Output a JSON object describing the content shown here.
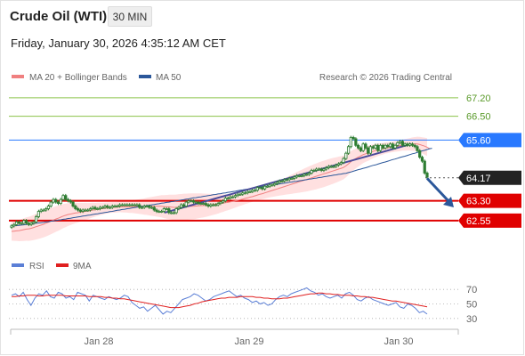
{
  "header": {
    "title": "Crude Oil (WTI)",
    "timeframe": "30 MIN",
    "datetime": "Friday, January 30, 2026 4:35:12 AM CET"
  },
  "legend": {
    "ma20": "MA 20 + Bollinger Bands",
    "ma50": "MA 50",
    "credit": "Research © 2026 Trading Central",
    "rsi": "RSI",
    "ma9": "9MA"
  },
  "colors": {
    "candle": "#2e7d32",
    "ma20": "#f08080",
    "band": "#ffe0e0",
    "ma50": "#2b579a",
    "resistance_green": "#8bc34a",
    "pivot_blue": "#2979ff",
    "support_red": "#e00000",
    "trend": "#4a4a9a",
    "arrow": "#2b579a",
    "rsi": "#5b7fd6",
    "rsi_ma": "#e02020"
  },
  "chart_data": {
    "type": "candlestick",
    "title": "Crude Oil (WTI)",
    "interval": "30 MIN",
    "xlabel": "",
    "ylabel": "",
    "x_ticks": [
      "Jan 28",
      "Jan 29",
      "Jan 30"
    ],
    "ylim": [
      61.4,
      67.6
    ],
    "levels": [
      {
        "label": "67.20",
        "value": 67.2,
        "kind": "resistance"
      },
      {
        "label": "66.50",
        "value": 66.5,
        "kind": "resistance"
      },
      {
        "label": "65.60",
        "value": 65.6,
        "kind": "pivot"
      },
      {
        "label": "64.17",
        "value": 64.17,
        "kind": "last_price"
      },
      {
        "label": "63.30",
        "value": 63.3,
        "kind": "support"
      },
      {
        "label": "62.55",
        "value": 62.55,
        "kind": "support"
      }
    ],
    "close": [
      62.35,
      62.4,
      62.5,
      62.45,
      62.45,
      62.55,
      62.45,
      62.4,
      62.45,
      62.5,
      62.7,
      62.9,
      62.95,
      62.95,
      63.0,
      63.1,
      63.25,
      63.35,
      63.25,
      63.2,
      63.35,
      63.5,
      63.35,
      63.3,
      63.25,
      63.1,
      63.0,
      62.95,
      62.9,
      62.95,
      62.95,
      62.95,
      63.0,
      63.05,
      63.0,
      63.0,
      63.05,
      63.05,
      63.1,
      63.05,
      63.05,
      63.1,
      63.1,
      63.1,
      63.15,
      63.15,
      63.15,
      63.15,
      63.15,
      63.15,
      63.15,
      63.15,
      63.05,
      63.05,
      63.1,
      63.1,
      63.05,
      63.05,
      62.95,
      62.9,
      62.9,
      62.9,
      63.0,
      63.0,
      62.85,
      62.85,
      62.85,
      63.0,
      63.05,
      63.15,
      63.1,
      63.25,
      63.3,
      63.3,
      63.25,
      63.25,
      63.2,
      63.2,
      63.2,
      63.15,
      63.1,
      63.15,
      63.15,
      63.15,
      63.2,
      63.25,
      63.3,
      63.4,
      63.4,
      63.45,
      63.45,
      63.5,
      63.55,
      63.55,
      63.6,
      63.6,
      63.65,
      63.65,
      63.7,
      63.7,
      63.8,
      63.8,
      63.75,
      63.85,
      63.85,
      63.9,
      63.9,
      63.95,
      64.0,
      64.05,
      64.05,
      64.1,
      64.1,
      64.15,
      64.15,
      64.2,
      64.25,
      64.25,
      64.25,
      64.3,
      64.3,
      64.35,
      64.45,
      64.45,
      64.5,
      64.5,
      64.45,
      64.5,
      64.55,
      64.6,
      64.6,
      64.6,
      64.65,
      64.7,
      64.75,
      64.9,
      65.1,
      65.35,
      65.7,
      65.65,
      65.4,
      65.3,
      65.2,
      65.45,
      65.3,
      65.1,
      65.35,
      65.3,
      65.4,
      65.2,
      65.4,
      65.3,
      65.4,
      65.35,
      65.45,
      65.3,
      65.4,
      65.5,
      65.55,
      65.4,
      65.45,
      65.4,
      65.45,
      65.4,
      65.35,
      65.2,
      64.95,
      64.8,
      64.35,
      64.2
    ],
    "ma20": [
      62.14,
      62.15,
      62.16,
      62.17,
      62.19,
      62.21,
      62.23,
      62.24,
      62.26,
      62.29,
      62.32,
      62.35,
      62.38,
      62.41,
      62.45,
      62.49,
      62.53,
      62.57,
      62.61,
      62.64,
      62.68,
      62.72,
      62.75,
      62.78,
      62.8,
      62.82,
      62.84,
      62.85,
      62.87,
      62.88,
      62.9,
      62.91,
      62.93,
      62.95,
      62.96,
      62.98,
      62.99,
      63.0,
      63.02,
      63.03,
      63.04,
      63.05,
      63.05,
      63.06,
      63.07,
      63.07,
      63.07,
      63.07,
      63.07,
      63.08,
      63.08,
      63.08,
      63.08,
      63.08,
      63.08,
      63.09,
      63.09,
      63.09,
      63.09,
      63.09,
      63.09,
      63.09,
      63.08,
      63.07,
      63.07,
      63.06,
      63.05,
      63.05,
      63.06,
      63.06,
      63.07,
      63.07,
      63.08,
      63.09,
      63.09,
      63.1,
      63.11,
      63.12,
      63.12,
      63.13,
      63.14,
      63.15,
      63.16,
      63.17,
      63.18,
      63.2,
      63.21,
      63.23,
      63.24,
      63.26,
      63.28,
      63.3,
      63.32,
      63.34,
      63.36,
      63.39,
      63.41,
      63.44,
      63.46,
      63.49,
      63.52,
      63.55,
      63.57,
      63.6,
      63.63,
      63.66,
      63.69,
      63.72,
      63.75,
      63.78,
      63.81,
      63.84,
      63.87,
      63.9,
      63.93,
      63.96,
      63.99,
      64.02,
      64.05,
      64.08,
      64.11,
      64.14,
      64.17,
      64.2,
      64.23,
      64.26,
      64.29,
      64.32,
      64.35,
      64.38,
      64.41,
      64.44,
      64.47,
      64.5,
      64.53,
      64.56,
      64.62,
      64.7,
      64.78,
      64.85,
      64.9,
      64.95,
      65.0,
      65.05,
      65.08,
      65.1,
      65.14,
      65.17,
      65.2,
      65.23,
      65.25,
      65.27,
      65.3,
      65.31,
      65.33,
      65.34,
      65.36,
      65.37,
      65.39,
      65.41,
      65.42,
      65.43,
      65.44,
      65.45,
      65.45,
      65.45,
      65.43,
      65.4,
      65.37,
      65.33,
      65.28
    ],
    "ma50": [
      62.34,
      62.35,
      62.36,
      62.37,
      62.38,
      62.39,
      62.4,
      62.41,
      62.42,
      62.43,
      62.45,
      62.46,
      62.47,
      62.48,
      62.5,
      62.51,
      62.53,
      62.54,
      62.55,
      62.57,
      62.58,
      62.6,
      62.61,
      62.63,
      62.64,
      62.66,
      62.67,
      62.69,
      62.7,
      62.72,
      62.73,
      62.75,
      62.76,
      62.78,
      62.8,
      62.81,
      62.83,
      62.84,
      62.86,
      62.87,
      62.89,
      62.9,
      62.92,
      62.94,
      62.95,
      62.97,
      62.98,
      63.0,
      63.01,
      63.03,
      63.04,
      63.06,
      63.07,
      63.09,
      63.1,
      63.12,
      63.13,
      63.15,
      63.16,
      63.18,
      63.19,
      63.21,
      63.22,
      63.24,
      63.25,
      63.27,
      63.28,
      63.3,
      63.31,
      63.33,
      63.34,
      63.36,
      63.37,
      63.39,
      63.41,
      63.42,
      63.44,
      63.45,
      63.47,
      63.48,
      63.5,
      63.51,
      63.53,
      63.54,
      63.56,
      63.57,
      63.59,
      63.6,
      63.62,
      63.63,
      63.65,
      63.66,
      63.68,
      63.7,
      63.71,
      63.73,
      63.74,
      63.76,
      63.77,
      63.79,
      63.8,
      63.82,
      63.83,
      63.85,
      63.86,
      63.88,
      63.89,
      63.91,
      63.92,
      63.94,
      63.95,
      63.97,
      63.98,
      64.0,
      64.01,
      64.03,
      64.04,
      64.06,
      64.07,
      64.09,
      64.1,
      64.12,
      64.13,
      64.15,
      64.16,
      64.18,
      64.19,
      64.21,
      64.22,
      64.24,
      64.25,
      64.27,
      64.28,
      64.3,
      64.31,
      64.33,
      64.34,
      64.37,
      64.39,
      64.42,
      64.45,
      64.48,
      64.5,
      64.53,
      64.55,
      64.58,
      64.61,
      64.64,
      64.66,
      64.69,
      64.72,
      64.75,
      64.77,
      64.8,
      64.83,
      64.86,
      64.88,
      64.91,
      64.94,
      64.97,
      64.99,
      65.02,
      65.05,
      65.08,
      65.1,
      65.13,
      65.16,
      65.19,
      65.21,
      65.24,
      65.27,
      65.29
    ],
    "rsi": [
      62,
      64,
      60,
      66,
      56,
      48,
      58,
      64,
      62,
      68,
      60,
      58,
      66,
      64,
      58,
      60,
      56,
      66,
      64,
      62,
      54,
      62,
      60,
      58,
      56,
      60,
      58,
      56,
      58,
      62,
      60,
      52,
      48,
      44,
      46,
      40,
      44,
      48,
      42,
      36,
      40,
      38,
      44,
      50,
      56,
      58,
      60,
      64,
      62,
      58,
      54,
      56,
      60,
      62,
      64,
      66,
      68,
      64,
      60,
      62,
      58,
      56,
      52,
      54,
      50,
      52,
      48,
      50,
      56,
      60,
      62,
      60,
      64,
      66,
      68,
      70,
      72,
      68,
      66,
      62,
      64,
      60,
      58,
      60,
      62,
      58,
      64,
      66,
      62,
      56,
      54,
      58,
      60,
      56,
      54,
      52,
      50,
      48,
      50,
      52,
      46,
      44,
      50,
      48,
      44,
      38,
      40,
      36
    ],
    "rsi_ma": [
      60,
      60,
      61,
      61,
      62,
      62,
      62,
      61,
      61,
      62,
      62,
      62,
      62,
      62,
      61,
      61,
      61,
      61,
      61,
      61,
      60,
      60,
      60,
      60,
      59,
      59,
      58,
      58,
      57,
      57,
      56,
      55,
      54,
      53,
      52,
      51,
      50,
      49,
      48,
      47,
      46,
      45,
      45,
      45,
      46,
      47,
      48,
      50,
      51,
      53,
      54,
      55,
      56,
      57,
      58,
      58,
      59,
      59,
      59,
      60,
      60,
      60,
      60,
      59,
      59,
      58,
      58,
      57,
      57,
      57,
      58,
      58,
      59,
      60,
      61,
      62,
      63,
      64,
      64,
      65,
      65,
      64,
      64,
      63,
      63,
      62,
      62,
      62,
      61,
      61,
      60,
      60,
      59,
      59,
      58,
      57,
      56,
      55,
      54,
      54,
      53,
      52,
      51,
      50,
      49,
      48,
      47,
      46
    ],
    "rsi_ticks": [
      "70",
      "50",
      "30"
    ],
    "rsi_ylim": [
      20,
      80
    ]
  }
}
